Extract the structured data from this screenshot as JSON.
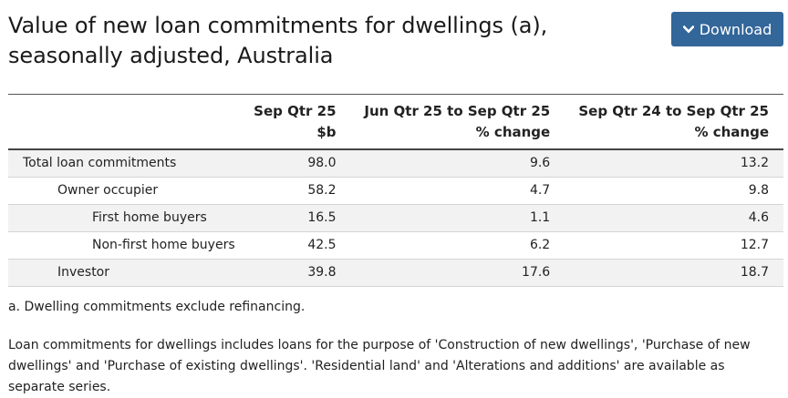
{
  "title": "Value of new loan commitments for dwellings (a), seasonally adjusted, Australia",
  "download": {
    "label": "Download",
    "icon": "chevron-down-icon",
    "bg_color": "#336699"
  },
  "table": {
    "columns": [
      {
        "line1": "Sep Qtr 25",
        "line2": "$b"
      },
      {
        "line1": "Jun Qtr 25 to Sep Qtr 25",
        "line2": "% change"
      },
      {
        "line1": "Sep Qtr 24 to Sep Qtr 25",
        "line2": "% change"
      }
    ],
    "rows": [
      {
        "label": "Total loan commitments",
        "level": 0,
        "values": [
          "98.0",
          "9.6",
          "13.2"
        ]
      },
      {
        "label": "Owner occupier",
        "level": 1,
        "values": [
          "58.2",
          "4.7",
          "9.8"
        ]
      },
      {
        "label": "First home buyers",
        "level": 2,
        "values": [
          "16.5",
          "1.1",
          "4.6"
        ]
      },
      {
        "label": "Non-first home buyers",
        "level": 2,
        "values": [
          "42.5",
          "6.2",
          "12.7"
        ]
      },
      {
        "label": "Investor",
        "level": 1,
        "values": [
          "39.8",
          "17.6",
          "18.7"
        ]
      }
    ]
  },
  "footnote": "a. Dwelling commitments exclude refinancing.",
  "note": "Loan commitments for dwellings includes loans for the purpose of 'Construction of new dwellings', 'Purchase of new dwellings' and 'Purchase of existing dwellings'. 'Residential land' and 'Alterations and additions' are available as separate series."
}
